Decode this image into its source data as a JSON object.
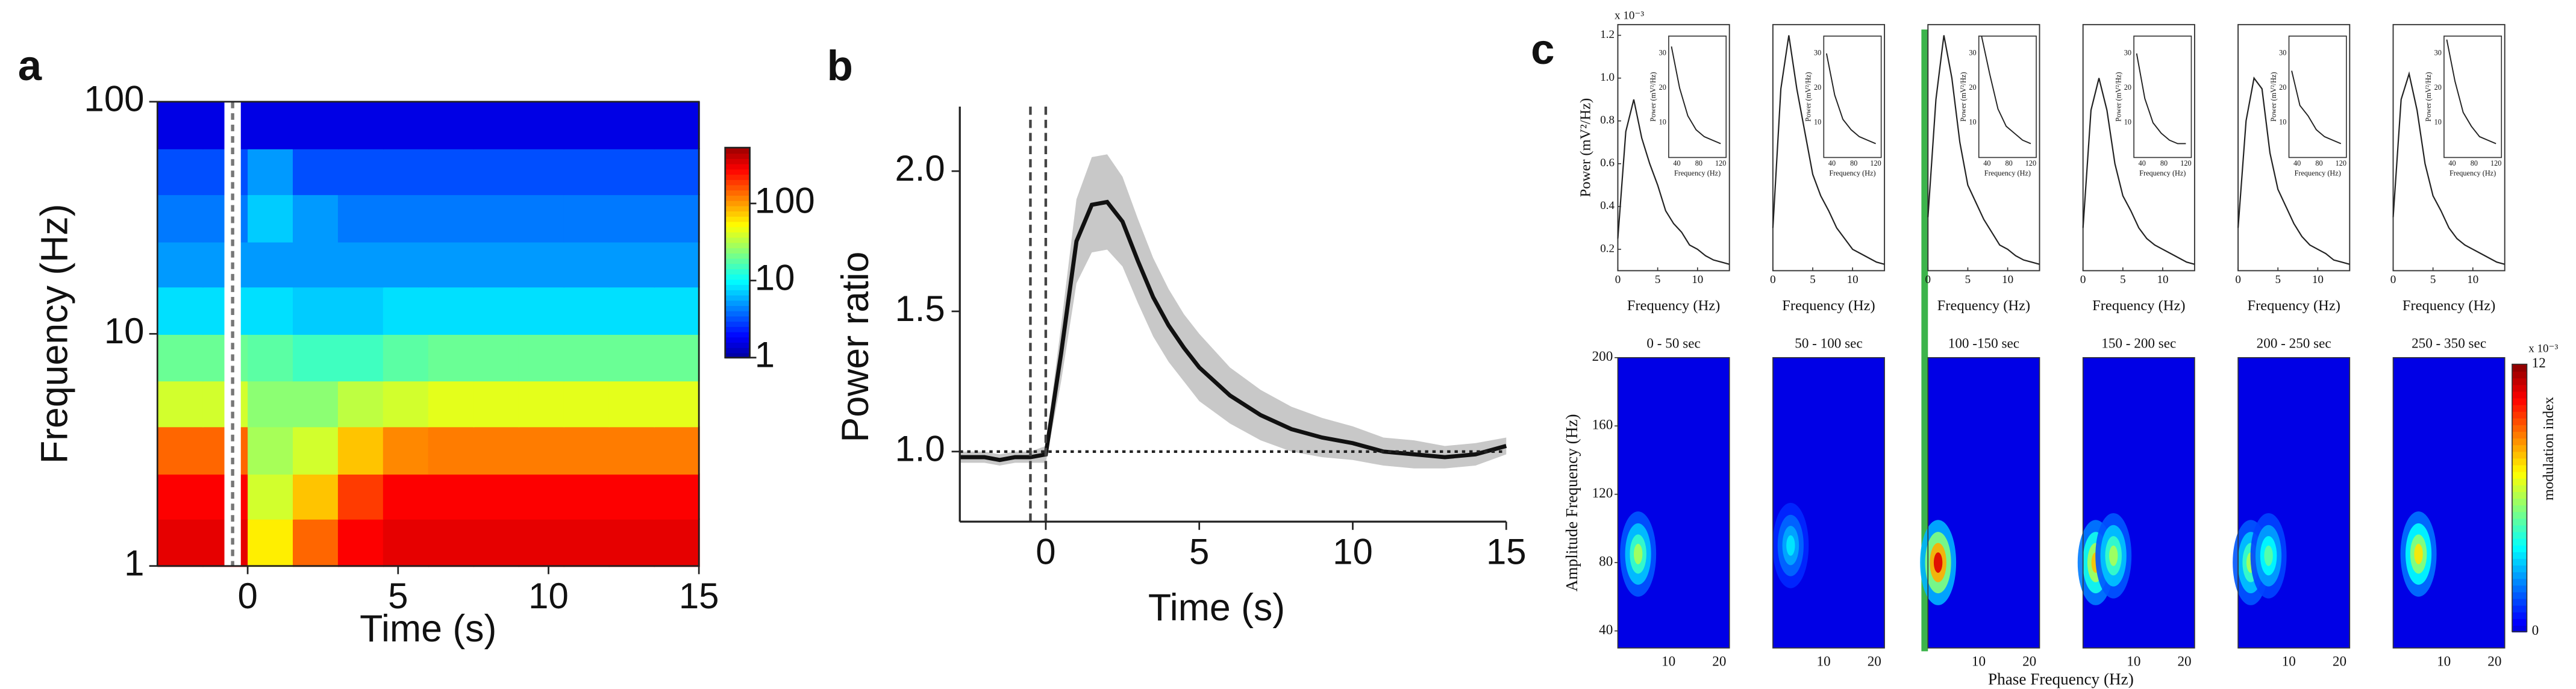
{
  "chart_data": [
    {
      "type": "heatmap",
      "panel": "a",
      "xlabel": "Time (s)",
      "ylabel": "Frequency (Hz)",
      "x_edges": [
        -3,
        -1.5,
        0,
        1.5,
        3,
        4.5,
        6,
        7.5,
        9,
        10.5,
        12,
        13.5,
        15
      ],
      "y_edges": [
        1,
        1.6,
        2.5,
        4,
        6.3,
        10,
        16,
        25,
        40,
        63,
        100
      ],
      "values": [
        [
          350,
          350,
          60,
          150,
          300,
          350,
          350,
          350,
          350,
          350,
          350,
          350
        ],
        [
          300,
          300,
          40,
          80,
          200,
          300,
          300,
          300,
          300,
          300,
          300,
          300
        ],
        [
          150,
          150,
          30,
          40,
          80,
          120,
          130,
          130,
          130,
          130,
          130,
          130
        ],
        [
          40,
          40,
          25,
          25,
          35,
          40,
          45,
          45,
          45,
          45,
          45,
          45
        ],
        [
          20,
          20,
          18,
          15,
          15,
          18,
          20,
          20,
          20,
          20,
          20,
          20
        ],
        [
          8,
          8,
          8,
          7,
          7,
          8,
          8,
          8,
          8,
          8,
          8,
          8
        ],
        [
          5,
          5,
          5,
          5,
          5,
          5,
          5,
          5,
          5,
          5,
          5,
          5
        ],
        [
          4,
          4,
          7,
          5,
          4,
          4,
          4,
          4,
          4,
          4,
          4,
          4
        ],
        [
          3,
          3,
          5,
          3,
          3,
          3,
          3,
          3,
          3,
          3,
          3,
          3
        ],
        [
          1.5,
          1.5,
          1.5,
          1.5,
          1.5,
          1.5,
          1.5,
          1.5,
          1.5,
          1.5,
          1.5,
          1.5
        ]
      ],
      "xlim": [
        -3,
        15
      ],
      "xticks": [
        0,
        5,
        10,
        15
      ],
      "ylim": [
        1,
        100
      ],
      "yticks": [
        1,
        10,
        100
      ],
      "ylog": true,
      "colorbar": {
        "lim": [
          1,
          530
        ],
        "ticks": [
          1,
          10,
          100
        ],
        "log": true
      },
      "marker_band": -0.5
    },
    {
      "type": "line",
      "panel": "b",
      "xlabel": "Time (s)",
      "ylabel": "Power ratio",
      "x": [
        -2.8,
        -2,
        -1.5,
        -1,
        -0.5,
        0,
        0.5,
        1,
        1.5,
        2,
        2.5,
        3,
        3.5,
        4,
        4.5,
        5,
        6,
        7,
        8,
        9,
        10,
        11,
        12,
        13,
        14,
        15
      ],
      "series": [
        {
          "color": "#111111",
          "band_color": "#c8c8c8",
          "values": [
            0.98,
            0.98,
            0.97,
            0.98,
            0.98,
            0.99,
            1.35,
            1.75,
            1.88,
            1.89,
            1.82,
            1.68,
            1.55,
            1.45,
            1.37,
            1.3,
            1.2,
            1.13,
            1.08,
            1.05,
            1.03,
            1.0,
            0.99,
            0.98,
            0.99,
            1.02
          ],
          "error": [
            0.02,
            0.02,
            0.02,
            0.02,
            0.02,
            0.03,
            0.1,
            0.15,
            0.17,
            0.17,
            0.16,
            0.15,
            0.14,
            0.13,
            0.12,
            0.12,
            0.1,
            0.09,
            0.08,
            0.07,
            0.06,
            0.05,
            0.05,
            0.04,
            0.04,
            0.03
          ]
        }
      ],
      "xlim": [
        -2.8,
        15
      ],
      "xticks": [
        0,
        5,
        10,
        15
      ],
      "ylim": [
        0.75,
        2.23
      ],
      "yticks": [
        {
          "value": 1,
          "label": "1.0"
        },
        {
          "value": 1.5,
          "label": "1.5"
        },
        {
          "value": 2,
          "label": "2.0"
        }
      ],
      "vlines": [
        -0.5,
        0
      ],
      "hline": 1
    },
    {
      "type": "spectra",
      "panel": "c",
      "exponent": "x 10⁻³",
      "xlabel": "Frequency (Hz)",
      "ylabel": "Power (mV²/Hz)",
      "x": [
        0,
        1,
        2,
        3,
        4,
        5,
        6,
        7,
        8,
        9,
        10,
        11,
        12,
        13,
        14
      ],
      "series": [
        {
          "values": [
            0.25,
            0.75,
            0.9,
            0.72,
            0.6,
            0.5,
            0.38,
            0.32,
            0.28,
            0.22,
            0.2,
            0.17,
            0.15,
            0.14,
            0.13
          ]
        },
        {
          "values": [
            0.3,
            0.95,
            1.2,
            0.95,
            0.75,
            0.55,
            0.45,
            0.38,
            0.3,
            0.25,
            0.2,
            0.18,
            0.16,
            0.14,
            0.13
          ]
        },
        {
          "values": [
            0.35,
            0.9,
            1.2,
            1.0,
            0.7,
            0.5,
            0.42,
            0.34,
            0.28,
            0.22,
            0.2,
            0.17,
            0.15,
            0.14,
            0.13
          ]
        },
        {
          "values": [
            0.3,
            0.85,
            1.0,
            0.85,
            0.6,
            0.45,
            0.38,
            0.3,
            0.25,
            0.22,
            0.2,
            0.18,
            0.16,
            0.14,
            0.13
          ]
        },
        {
          "values": [
            0.3,
            0.8,
            1.0,
            0.95,
            0.65,
            0.48,
            0.4,
            0.32,
            0.26,
            0.22,
            0.2,
            0.18,
            0.15,
            0.14,
            0.13
          ]
        },
        {
          "values": [
            0.35,
            0.9,
            1.02,
            0.85,
            0.6,
            0.45,
            0.38,
            0.3,
            0.25,
            0.22,
            0.2,
            0.18,
            0.16,
            0.14,
            0.13
          ]
        }
      ],
      "xlim": [
        0,
        14
      ],
      "xticks": [
        0,
        5,
        10
      ],
      "ylim": [
        0.1,
        1.25
      ],
      "yticks": [
        0.2,
        0.4,
        0.6,
        0.8,
        {
          "value": 1,
          "label": "1.0"
        },
        1.2
      ],
      "inset_x": [
        30,
        45,
        60,
        75,
        90,
        105,
        120
      ],
      "inset_values": [
        [
          32,
          20,
          12,
          8,
          6,
          5,
          4
        ],
        [
          30,
          18,
          11,
          8,
          6,
          5,
          4
        ],
        [
          35,
          24,
          14,
          9,
          7,
          5,
          4
        ],
        [
          30,
          17,
          10,
          7,
          5,
          4,
          4
        ],
        [
          25,
          15,
          12,
          8,
          6,
          5,
          4
        ],
        [
          34,
          22,
          13,
          9,
          6,
          5,
          4
        ]
      ],
      "inset_xlim": [
        25,
        130
      ],
      "inset_ylim": [
        0,
        35
      ],
      "inset_xticks": [
        40,
        80,
        120
      ],
      "inset_yticks": [
        10,
        20,
        30
      ]
    },
    {
      "type": "comodulogram",
      "xlabel": "Phase Frequency (Hz)",
      "ylabel": "Amplitude Frequency (Hz)",
      "titles": [
        "0 - 50 sec",
        "50 - 100 sec",
        "100 -150 sec",
        "150 - 200 sec",
        "200 - 250 sec",
        "250 - 350 sec"
      ],
      "blobs": [
        [
          {
            "phase": 4,
            "amp": 85,
            "mi": 6
          }
        ],
        [
          {
            "phase": 3.5,
            "amp": 90,
            "mi": 3.5
          }
        ],
        [
          {
            "phase": 2,
            "amp": 80,
            "mi": 11
          }
        ],
        [
          {
            "phase": 2.5,
            "amp": 80,
            "mi": 8
          },
          {
            "phase": 6,
            "amp": 84,
            "mi": 6
          }
        ],
        [
          {
            "phase": 2.5,
            "amp": 80,
            "mi": 6
          },
          {
            "phase": 6,
            "amp": 84,
            "mi": 5
          }
        ],
        [
          {
            "phase": 5,
            "amp": 85,
            "mi": 7.5
          }
        ]
      ],
      "xlim": [
        0,
        22
      ],
      "xticks": [
        10,
        20
      ],
      "ylim": [
        30,
        200
      ],
      "yticks": [
        40,
        80,
        120,
        160,
        200
      ],
      "colorbar": {
        "lim": [
          0,
          12
        ],
        "ticks": [
          0,
          12
        ],
        "label": "modulation index",
        "exponent": "x 10⁻³"
      }
    }
  ]
}
